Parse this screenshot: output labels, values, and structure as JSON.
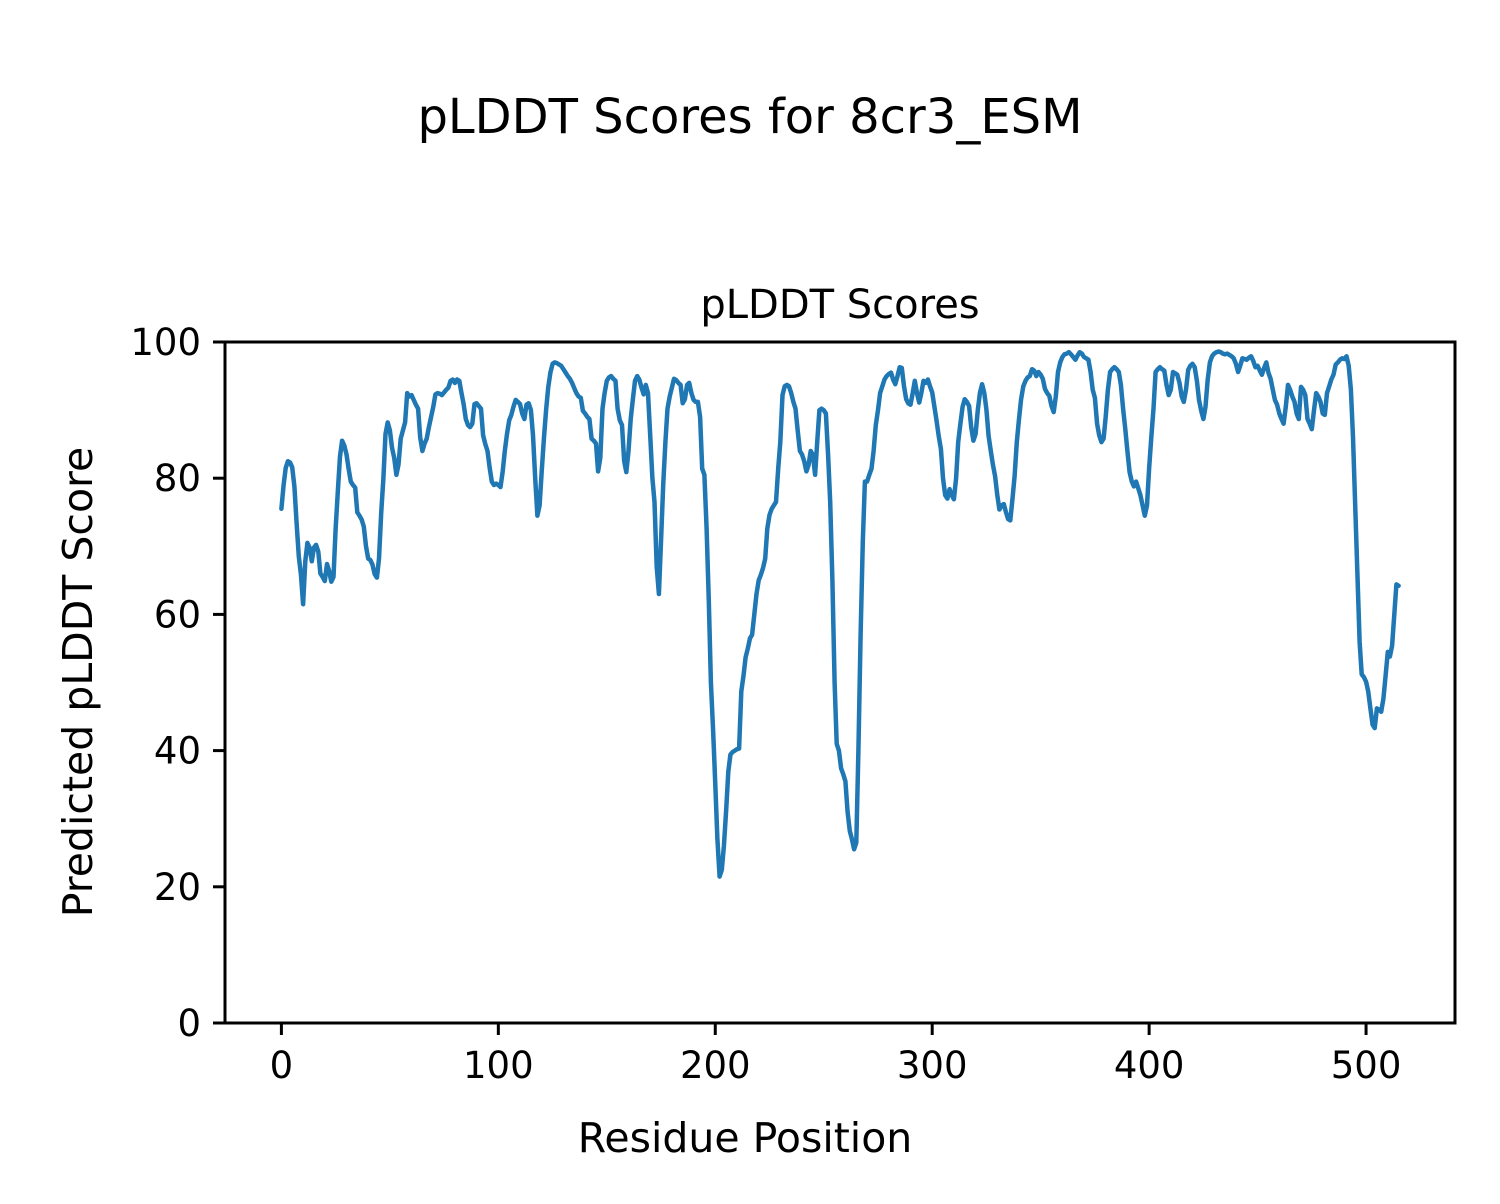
{
  "figure": {
    "title": "pLDDT Scores for 8cr3_ESM",
    "axes_title": "pLDDT Scores",
    "xlabel": "Residue Position",
    "ylabel": "Predicted pLDDT Score"
  },
  "style": {
    "line_color": "#1f77b4",
    "axes_color": "#000000",
    "background": "#ffffff"
  },
  "chart_data": {
    "type": "line",
    "title": "pLDDT Scores",
    "suptitle": "pLDDT Scores for 8cr3_ESM",
    "xlabel": "Residue Position",
    "ylabel": "Predicted pLDDT Score",
    "xlim": [
      -26,
      541
    ],
    "ylim": [
      0,
      100
    ],
    "x_ticks": [
      0,
      100,
      200,
      300,
      400,
      500
    ],
    "y_ticks": [
      0,
      20,
      40,
      60,
      80,
      100
    ],
    "grid": false,
    "legend": null,
    "series": [
      {
        "name": "pLDDT",
        "color": "#1f77b4",
        "x_start": 0,
        "x_step": 1,
        "values": [
          75.5,
          79,
          81.5,
          82.5,
          82.3,
          81.6,
          78.8,
          73.4,
          68.5,
          65.9,
          61.5,
          67.8,
          70.5,
          69.8,
          67.8,
          69.8,
          70.2,
          69.2,
          66,
          65.5,
          64.9,
          67.4,
          66.4,
          64.8,
          65.5,
          72.5,
          78,
          83.2,
          85.5,
          84.8,
          83.5,
          81.3,
          79.5,
          79,
          78.6,
          75,
          74.5,
          73.9,
          72.9,
          70,
          68.2,
          68,
          67.3,
          65.9,
          65.4,
          68.2,
          74.9,
          80,
          86.5,
          88.2,
          87,
          84.5,
          83,
          80.5,
          82,
          85.8,
          87,
          88.2,
          92.5,
          92,
          92.2,
          91.5,
          90.8,
          90.2,
          86,
          84,
          85.1,
          85.8,
          87.5,
          89,
          90.5,
          92.3,
          92.5,
          92.4,
          92.2,
          92.6,
          93,
          93.3,
          94.3,
          94.5,
          94,
          94.5,
          94.3,
          92.5,
          90.9,
          88.7,
          87.8,
          87.5,
          88,
          90.9,
          91,
          90.6,
          90.2,
          86.3,
          85,
          84,
          81.5,
          79.5,
          79,
          79.2,
          79,
          78.7,
          81,
          84,
          86.5,
          88.5,
          89.3,
          90.5,
          91.5,
          91.2,
          90.9,
          89.5,
          88.7,
          90.8,
          91,
          90,
          86.3,
          80,
          74.5,
          76,
          81,
          85.8,
          90,
          93.3,
          95.5,
          96.8,
          97,
          96.9,
          96.7,
          96.5,
          96,
          95.5,
          95,
          94.6,
          94,
          93.2,
          92.5,
          92,
          91.8,
          89.9,
          89.5,
          89,
          88.7,
          85.8,
          85.5,
          85.1,
          81,
          83,
          90.2,
          92.5,
          94.3,
          94.8,
          95,
          94.6,
          94.3,
          90.2,
          88.5,
          87.8,
          82.5,
          80.9,
          84,
          88.7,
          91.5,
          94.3,
          95,
          94.5,
          93.3,
          92.3,
          93.7,
          92.5,
          86.3,
          80,
          76.5,
          67,
          63,
          70.7,
          79,
          85.3,
          90.2,
          92,
          93.3,
          94.6,
          94.4,
          94,
          93.7,
          91,
          91.6,
          93.7,
          94,
          92.5,
          91.5,
          91.2,
          91.2,
          89,
          81.4,
          80.5,
          72.6,
          62,
          50,
          43,
          35,
          27,
          21.5,
          22.5,
          26,
          31.1,
          36.9,
          39.4,
          39.8,
          40,
          40.2,
          40.3,
          48.7,
          51,
          53.7,
          55,
          56.5,
          57,
          60,
          63,
          65,
          65.8,
          66.8,
          68.2,
          72.6,
          74.6,
          75.5,
          76,
          76.5,
          81.4,
          85.3,
          92.2,
          93.5,
          93.7,
          93.5,
          92.5,
          91.2,
          90.2,
          87,
          84,
          83.5,
          82.5,
          81,
          81.9,
          84,
          83.4,
          80.5,
          85.3,
          90,
          90.2,
          90,
          89.5,
          83.4,
          76.5,
          65,
          50,
          41,
          40,
          37.4,
          36.5,
          35.5,
          31,
          28.2,
          27,
          25.5,
          26.5,
          40,
          57,
          70.7,
          79.5,
          79.5,
          80.5,
          81.4,
          84,
          87.8,
          90,
          92.5,
          93.5,
          94.5,
          95,
          95.3,
          95.5,
          94.5,
          93.8,
          95,
          96.3,
          96.2,
          93.5,
          91.6,
          91,
          90.8,
          92.5,
          94.3,
          92.5,
          91.1,
          92.5,
          94.3,
          94,
          94.5,
          93.5,
          92.6,
          90.5,
          88.5,
          86.2,
          84.3,
          80,
          77.5,
          77,
          78.4,
          77.5,
          76.9,
          80,
          85.3,
          88,
          90.5,
          91.6,
          91.2,
          90.6,
          87.5,
          85.5,
          86.5,
          90,
          92.5,
          93.8,
          92.5,
          90.1,
          86.2,
          84,
          82,
          80.3,
          77.5,
          75.4,
          76,
          76.2,
          75,
          74,
          73.8,
          77,
          80.3,
          85.3,
          88.7,
          91.6,
          93.5,
          94.3,
          94.8,
          95,
          96,
          95.8,
          95,
          95.6,
          95.2,
          94.6,
          93.1,
          92.5,
          92.1,
          90.6,
          89.7,
          92,
          95.6,
          97,
          97.8,
          98.2,
          98.3,
          98.5,
          98.2,
          97.8,
          97.4,
          98,
          98.5,
          98.3,
          97.8,
          97.6,
          97.4,
          95.6,
          93,
          91.8,
          88,
          86.3,
          85.3,
          85.8,
          89,
          93,
          95.6,
          96,
          96.3,
          96,
          95.6,
          93.7,
          90.2,
          87.2,
          84,
          80.9,
          79.5,
          78.8,
          79.5,
          78.5,
          77.5,
          76,
          74.5,
          76,
          81.4,
          86,
          90.2,
          95.6,
          96,
          96.3,
          96,
          95.8,
          93.7,
          92.2,
          93,
          95.6,
          95.4,
          95.2,
          94,
          92,
          91.2,
          93,
          95.9,
          96.5,
          96.8,
          96.3,
          94.3,
          91.5,
          89.9,
          88.7,
          90.5,
          94.5,
          97,
          97.9,
          98.3,
          98.5,
          98.6,
          98.5,
          98.3,
          98.2,
          98.3,
          98.1,
          97.9,
          97.6,
          96.8,
          95.6,
          96.5,
          97.6,
          97.5,
          97.4,
          97.7,
          97.9,
          97.2,
          96.3,
          96.5,
          95.8,
          95.2,
          96.2,
          97,
          95.5,
          94.6,
          93,
          91.5,
          90.8,
          89.5,
          88.7,
          88,
          90.5,
          93.7,
          93,
          92,
          91.2,
          89.5,
          88.7,
          93.4,
          93,
          92.2,
          88.7,
          88,
          87.2,
          90,
          92.5,
          92,
          91.2,
          89.5,
          89.3,
          92.5,
          93.5,
          94.5,
          95.2,
          96.7,
          97,
          97.4,
          97.6,
          97.5,
          97.9,
          96.5,
          93,
          86,
          76,
          66,
          56,
          51.2,
          50.8,
          50.1,
          48.7,
          46.2,
          43.8,
          43.3,
          46.2,
          46,
          45.7,
          47.6,
          51,
          54.5,
          53.8,
          55.4,
          60,
          64.4,
          64.2
        ]
      }
    ]
  }
}
